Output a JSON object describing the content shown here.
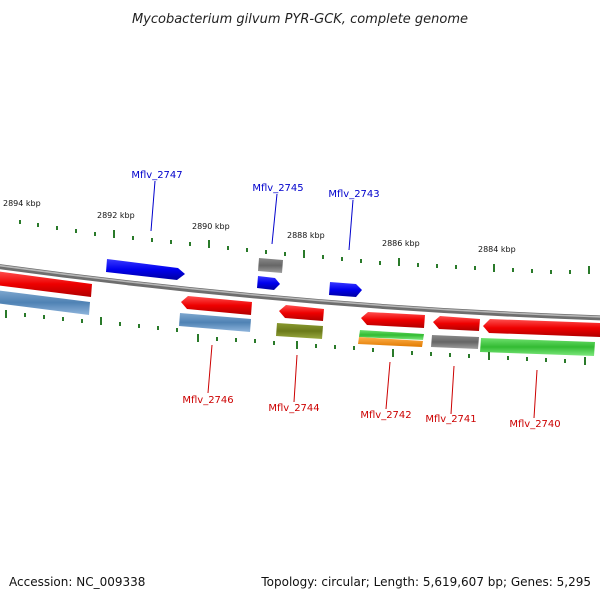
{
  "title": "Mycobacterium gilvum PYR-GCK, complete genome",
  "footer": {
    "accession": "Accession: NC_009338",
    "summary": "Topology: circular; Length: 5,619,607 bp; Genes: 5,295"
  },
  "kbp_labels": [
    "2894 kbp",
    "2892 kbp",
    "2890 kbp",
    "2888 kbp",
    "2886 kbp",
    "2884 kbp"
  ],
  "genes_top": [
    "Mflv_2747",
    "Mflv_2745",
    "Mflv_2743"
  ],
  "genes_bottom": [
    "Mflv_2746",
    "Mflv_2744",
    "Mflv_2742",
    "Mflv_2741",
    "Mflv_2740"
  ],
  "colors": {
    "forward_gene": "#0000ee",
    "reverse_gene": "#ee0000",
    "label_top": "#0000cc",
    "label_bottom": "#cc0000",
    "tick": "#2a7a2a",
    "backbone": "#808080"
  }
}
